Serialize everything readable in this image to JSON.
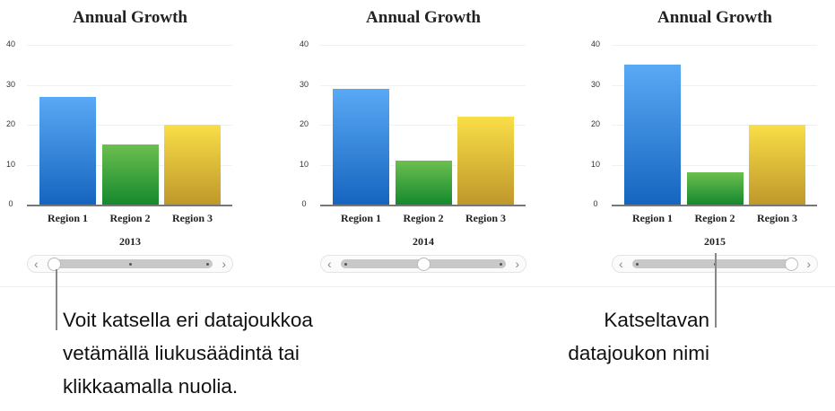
{
  "chart_data": [
    {
      "type": "bar",
      "title": "Annual Growth",
      "categories": [
        "Region 1",
        "Region 2",
        "Region 3"
      ],
      "values": [
        27,
        15,
        20
      ],
      "dataset_label": "2013",
      "ylim": [
        0,
        40
      ],
      "yticks": [
        0,
        10,
        20,
        30,
        40
      ],
      "slider_position": 0
    },
    {
      "type": "bar",
      "title": "Annual Growth",
      "categories": [
        "Region 1",
        "Region 2",
        "Region 3"
      ],
      "values": [
        29,
        11,
        22
      ],
      "dataset_label": "2014",
      "ylim": [
        0,
        40
      ],
      "yticks": [
        0,
        10,
        20,
        30,
        40
      ],
      "slider_position": 0.5
    },
    {
      "type": "bar",
      "title": "Annual Growth",
      "categories": [
        "Region 1",
        "Region 2",
        "Region 3"
      ],
      "values": [
        35,
        8,
        20
      ],
      "dataset_label": "2015",
      "ylim": [
        0,
        40
      ],
      "yticks": [
        0,
        10,
        20,
        30,
        40
      ],
      "slider_position": 1
    }
  ],
  "colors": {
    "region1": [
      "#5aa9f5",
      "#1565c0"
    ],
    "region2": [
      "#6cbf4f",
      "#15892e"
    ],
    "region3": [
      "#f9de47",
      "#bf982b"
    ]
  },
  "slider": {
    "prev_icon": "chevron-left-icon",
    "next_icon": "chevron-right-icon",
    "prev": "‹",
    "next": "›"
  },
  "callouts": {
    "left": "Voit katsella eri datajoukkoa\nvetämällä liukusäädintä tai\nklikkaamalla nuolia.",
    "right": "Katseltavan\ndatajoukon nimi"
  }
}
